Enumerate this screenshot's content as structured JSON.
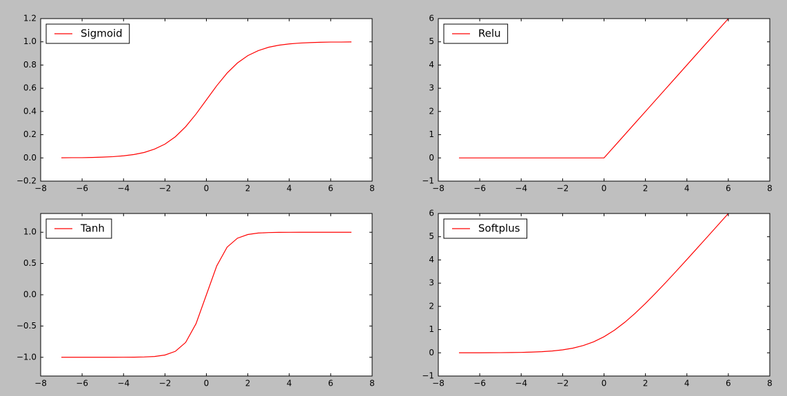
{
  "chart_data": [
    {
      "type": "line",
      "legend": "upper left",
      "x": [
        -7,
        -6.5,
        -6,
        -5.5,
        -5,
        -4.5,
        -4,
        -3.5,
        -3,
        -2.5,
        -2,
        -1.5,
        -1,
        -0.5,
        0,
        0.5,
        1,
        1.5,
        2,
        2.5,
        3,
        3.5,
        4,
        4.5,
        5,
        5.5,
        6,
        6.5,
        7
      ],
      "series": [
        {
          "name": "Sigmoid",
          "color": "#ff0000",
          "values": [
            0.001,
            0.002,
            0.002,
            0.004,
            0.007,
            0.011,
            0.018,
            0.029,
            0.047,
            0.076,
            0.119,
            0.182,
            0.269,
            0.378,
            0.5,
            0.622,
            0.731,
            0.818,
            0.881,
            0.924,
            0.953,
            0.971,
            0.982,
            0.989,
            0.993,
            0.996,
            0.998,
            0.998,
            0.999
          ]
        }
      ],
      "xlim": [
        -8,
        8
      ],
      "xticks": [
        {
          "value": -8,
          "label": "−8"
        },
        {
          "value": -6,
          "label": "−6"
        },
        {
          "value": -4,
          "label": "−4"
        },
        {
          "value": -2,
          "label": "−2"
        },
        0,
        2,
        4,
        6,
        8
      ],
      "ylim": [
        -0.2,
        1.2
      ],
      "yticks": [
        {
          "value": -0.2,
          "label": "−0.2"
        },
        {
          "value": 0,
          "label": "0.0"
        },
        0.2,
        0.4,
        0.6,
        0.8,
        {
          "value": 1,
          "label": "1.0"
        },
        1.2
      ]
    },
    {
      "type": "line",
      "legend": "upper left",
      "x": [
        -7,
        -6.5,
        -6,
        -5.5,
        -5,
        -4.5,
        -4,
        -3.5,
        -3,
        -2.5,
        -2,
        -1.5,
        -1,
        -0.5,
        0,
        0.5,
        1,
        1.5,
        2,
        2.5,
        3,
        3.5,
        4,
        4.5,
        5,
        5.5,
        6
      ],
      "series": [
        {
          "name": "Relu",
          "color": "#ff0000",
          "values": [
            0,
            0,
            0,
            0,
            0,
            0,
            0,
            0,
            0,
            0,
            0,
            0,
            0,
            0,
            0,
            0.5,
            1,
            1.5,
            2,
            2.5,
            3,
            3.5,
            4,
            4.5,
            5,
            5.5,
            6
          ]
        }
      ],
      "xlim": [
        -8,
        8
      ],
      "xticks": [
        {
          "value": -8,
          "label": "−8"
        },
        {
          "value": -6,
          "label": "−6"
        },
        {
          "value": -4,
          "label": "−4"
        },
        {
          "value": -2,
          "label": "−2"
        },
        0,
        2,
        4,
        6,
        8
      ],
      "ylim": [
        -1,
        6
      ],
      "yticks": [
        {
          "value": -1,
          "label": "−1"
        },
        0,
        1,
        2,
        3,
        4,
        5,
        6
      ]
    },
    {
      "type": "line",
      "legend": "upper left",
      "x": [
        -7,
        -6.5,
        -6,
        -5.5,
        -5,
        -4.5,
        -4,
        -3.5,
        -3,
        -2.5,
        -2,
        -1.5,
        -1,
        -0.5,
        0,
        0.5,
        1,
        1.5,
        2,
        2.5,
        3,
        3.5,
        4,
        4.5,
        5,
        5.5,
        6,
        6.5,
        7
      ],
      "series": [
        {
          "name": "Tanh",
          "color": "#ff0000",
          "values": [
            -1,
            -1,
            -1,
            -1,
            -1,
            -1,
            -0.999,
            -0.998,
            -0.995,
            -0.987,
            -0.964,
            -0.905,
            -0.762,
            -0.462,
            0,
            0.462,
            0.762,
            0.905,
            0.964,
            0.987,
            0.995,
            0.998,
            0.999,
            1,
            1,
            1,
            1,
            1,
            1
          ]
        }
      ],
      "xlim": [
        -8,
        8
      ],
      "xticks": [
        {
          "value": -8,
          "label": "−8"
        },
        {
          "value": -6,
          "label": "−6"
        },
        {
          "value": -4,
          "label": "−4"
        },
        {
          "value": -2,
          "label": "−2"
        },
        0,
        2,
        4,
        6,
        8
      ],
      "ylim": [
        -1.3,
        1.3
      ],
      "yticks": [
        {
          "value": -1,
          "label": "−1.0"
        },
        {
          "value": -0.5,
          "label": "−0.5"
        },
        {
          "value": 0,
          "label": "0.0"
        },
        0.5,
        {
          "value": 1,
          "label": "1.0"
        }
      ]
    },
    {
      "type": "line",
      "legend": "upper left",
      "x": [
        -7,
        -6.5,
        -6,
        -5.5,
        -5,
        -4.5,
        -4,
        -3.5,
        -3,
        -2.5,
        -2,
        -1.5,
        -1,
        -0.5,
        0,
        0.5,
        1,
        1.5,
        2,
        2.5,
        3,
        3.5,
        4,
        4.5,
        5,
        5.5,
        6
      ],
      "series": [
        {
          "name": "Softplus",
          "color": "#ff0000",
          "values": [
            0.001,
            0.002,
            0.002,
            0.004,
            0.007,
            0.011,
            0.018,
            0.03,
            0.049,
            0.079,
            0.127,
            0.201,
            0.313,
            0.474,
            0.693,
            0.974,
            1.313,
            1.701,
            2.127,
            2.579,
            3.049,
            3.53,
            4.018,
            4.511,
            5.007,
            5.504,
            6.002
          ]
        }
      ],
      "xlim": [
        -8,
        8
      ],
      "xticks": [
        {
          "value": -8,
          "label": "−8"
        },
        {
          "value": -6,
          "label": "−6"
        },
        {
          "value": -4,
          "label": "−4"
        },
        {
          "value": -2,
          "label": "−2"
        },
        0,
        2,
        4,
        6,
        8
      ],
      "ylim": [
        -1,
        6
      ],
      "yticks": [
        {
          "value": -1,
          "label": "−1"
        },
        0,
        1,
        2,
        3,
        4,
        5,
        6
      ]
    }
  ]
}
